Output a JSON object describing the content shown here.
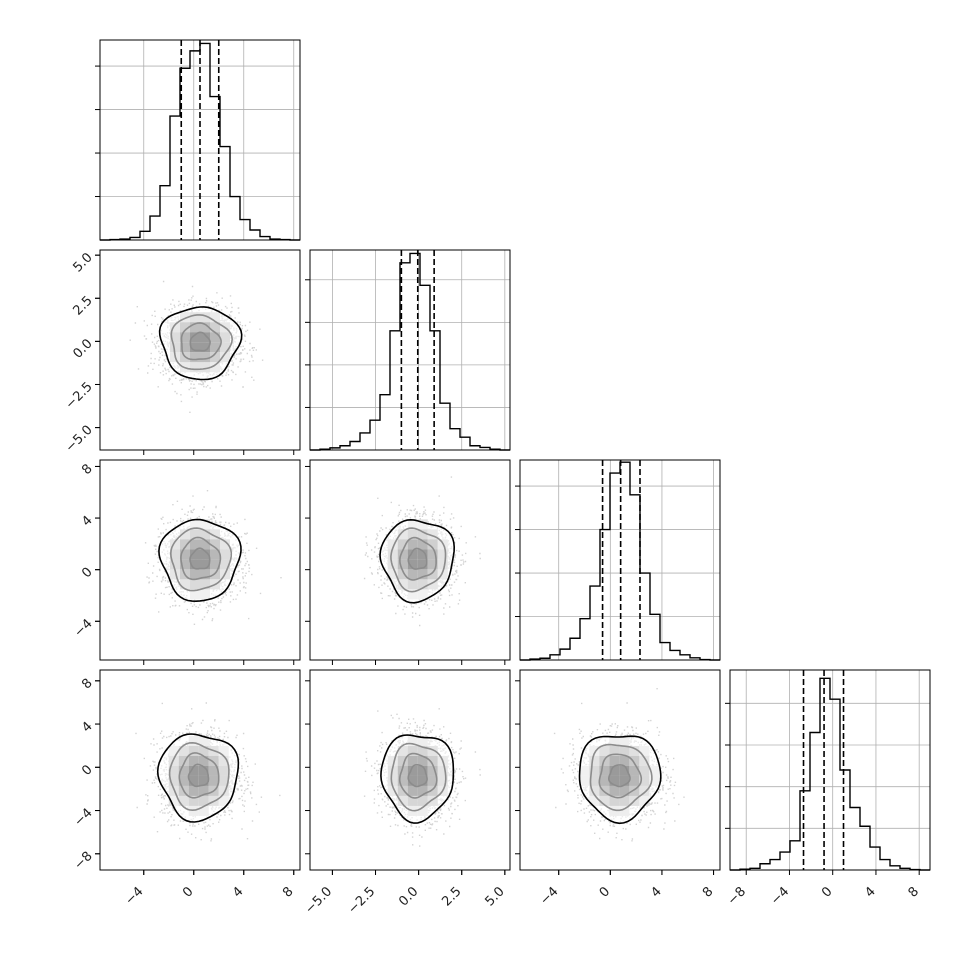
{
  "figure": {
    "type": "corner-plot",
    "colors": {
      "hist": "#000000",
      "grid": "#b0b0b0",
      "axes": "#000000",
      "points": "#808080"
    }
  },
  "chart_data": {
    "type": "corner",
    "grid": true,
    "parameters": [
      {
        "range": [
          -7.5,
          8.5
        ],
        "ticks": [
          -4,
          0,
          4,
          8
        ],
        "quantiles": [
          -1.0,
          0.5,
          2.0
        ],
        "center": 0.5,
        "sigma": 1.5,
        "hist_ylim": [
          0,
          4600
        ]
      },
      {
        "range": [
          -6.3,
          5.3
        ],
        "ticks": [
          -5.0,
          -2.5,
          0.0,
          2.5,
          5.0
        ],
        "tick_labels": [
          "−5.0",
          "−2.5",
          "0.0",
          "2.5",
          "5.0"
        ],
        "quantiles": [
          -1.0,
          -0.05,
          0.9
        ],
        "center": -0.05,
        "sigma": 1.0,
        "hist_ylim": [
          0,
          4700
        ]
      },
      {
        "range": [
          -7.0,
          8.5
        ],
        "ticks": [
          -4,
          0,
          4,
          8
        ],
        "quantiles": [
          -0.6,
          0.8,
          2.3
        ],
        "center": 0.8,
        "sigma": 1.5,
        "hist_ylim": [
          0,
          4600
        ]
      },
      {
        "range": [
          -9.5,
          9.0
        ],
        "ticks": [
          -8,
          -4,
          0,
          4,
          8
        ],
        "quantiles": [
          -2.7,
          -0.8,
          1.0
        ],
        "center": -0.8,
        "sigma": 1.9,
        "hist_ylim": [
          0,
          4800
        ]
      }
    ],
    "histograms": [
      {
        "param": 0,
        "bins": [
          -7.5,
          -6.7,
          -5.9,
          -5.1,
          -4.3,
          -3.5,
          -2.7,
          -1.9,
          -1.1,
          -0.3,
          0.5,
          1.3,
          2.1,
          2.9,
          3.7,
          4.5,
          5.3,
          6.1,
          6.9,
          7.7,
          8.5
        ],
        "counts": [
          0,
          10,
          20,
          60,
          200,
          550,
          1250,
          2850,
          3950,
          4350,
          4520,
          3300,
          2150,
          1000,
          470,
          230,
          80,
          20,
          10,
          0
        ],
        "yticks": [
          1000,
          2000,
          3000,
          4000
        ]
      },
      {
        "param": 1,
        "bins": [
          -6.3,
          -5.72,
          -5.14,
          -4.56,
          -3.98,
          -3.4,
          -2.82,
          -2.24,
          -1.66,
          -1.08,
          -0.5,
          0.08,
          0.66,
          1.24,
          1.82,
          2.4,
          2.98,
          3.56,
          4.14,
          4.72,
          5.3
        ],
        "counts": [
          0,
          20,
          50,
          100,
          200,
          400,
          700,
          1300,
          2800,
          4400,
          4620,
          3870,
          2800,
          1100,
          500,
          300,
          100,
          60,
          20,
          0
        ],
        "yticks": [
          1000,
          2000,
          3000,
          4000
        ]
      },
      {
        "param": 2,
        "bins": [
          -7.0,
          -6.225,
          -5.45,
          -4.675,
          -3.9,
          -3.125,
          -2.35,
          -1.575,
          -0.8,
          -0.025,
          0.75,
          1.525,
          2.3,
          3.075,
          3.85,
          4.625,
          5.4,
          6.175,
          6.95,
          7.725,
          8.5
        ],
        "counts": [
          0,
          20,
          40,
          120,
          250,
          500,
          950,
          1700,
          3000,
          4300,
          4550,
          3800,
          2000,
          1050,
          400,
          220,
          120,
          50,
          10,
          0
        ],
        "yticks": [
          1000,
          2000,
          3000,
          4000
        ]
      },
      {
        "param": 3,
        "bins": [
          -9.5,
          -8.575,
          -7.65,
          -6.725,
          -5.8,
          -4.875,
          -3.95,
          -3.025,
          -2.1,
          -1.175,
          -0.25,
          0.675,
          1.6,
          2.525,
          3.45,
          4.375,
          5.3,
          6.225,
          7.15,
          8.075,
          9.0
        ],
        "counts": [
          0,
          20,
          40,
          150,
          250,
          430,
          700,
          1900,
          3300,
          4600,
          4100,
          2400,
          1500,
          1050,
          550,
          250,
          100,
          40,
          10,
          0
        ],
        "yticks": [
          1000,
          2000,
          3000,
          4000
        ]
      }
    ],
    "scatter_panels": [
      {
        "x_param": 0,
        "y_param": 1,
        "peak": [
          0.5,
          -0.05
        ]
      },
      {
        "x_param": 0,
        "y_param": 2,
        "peak": [
          0.5,
          0.8
        ]
      },
      {
        "x_param": 1,
        "y_param": 2,
        "peak": [
          -0.05,
          0.8
        ]
      },
      {
        "x_param": 0,
        "y_param": 3,
        "peak": [
          0.4,
          -0.8
        ]
      },
      {
        "x_param": 1,
        "y_param": 3,
        "peak": [
          -0.05,
          -0.8
        ]
      },
      {
        "x_param": 2,
        "y_param": 3,
        "peak": [
          0.7,
          -0.8
        ]
      }
    ],
    "contour_levels_sigma": [
      0.5,
      1.0,
      1.5,
      2.0
    ]
  }
}
